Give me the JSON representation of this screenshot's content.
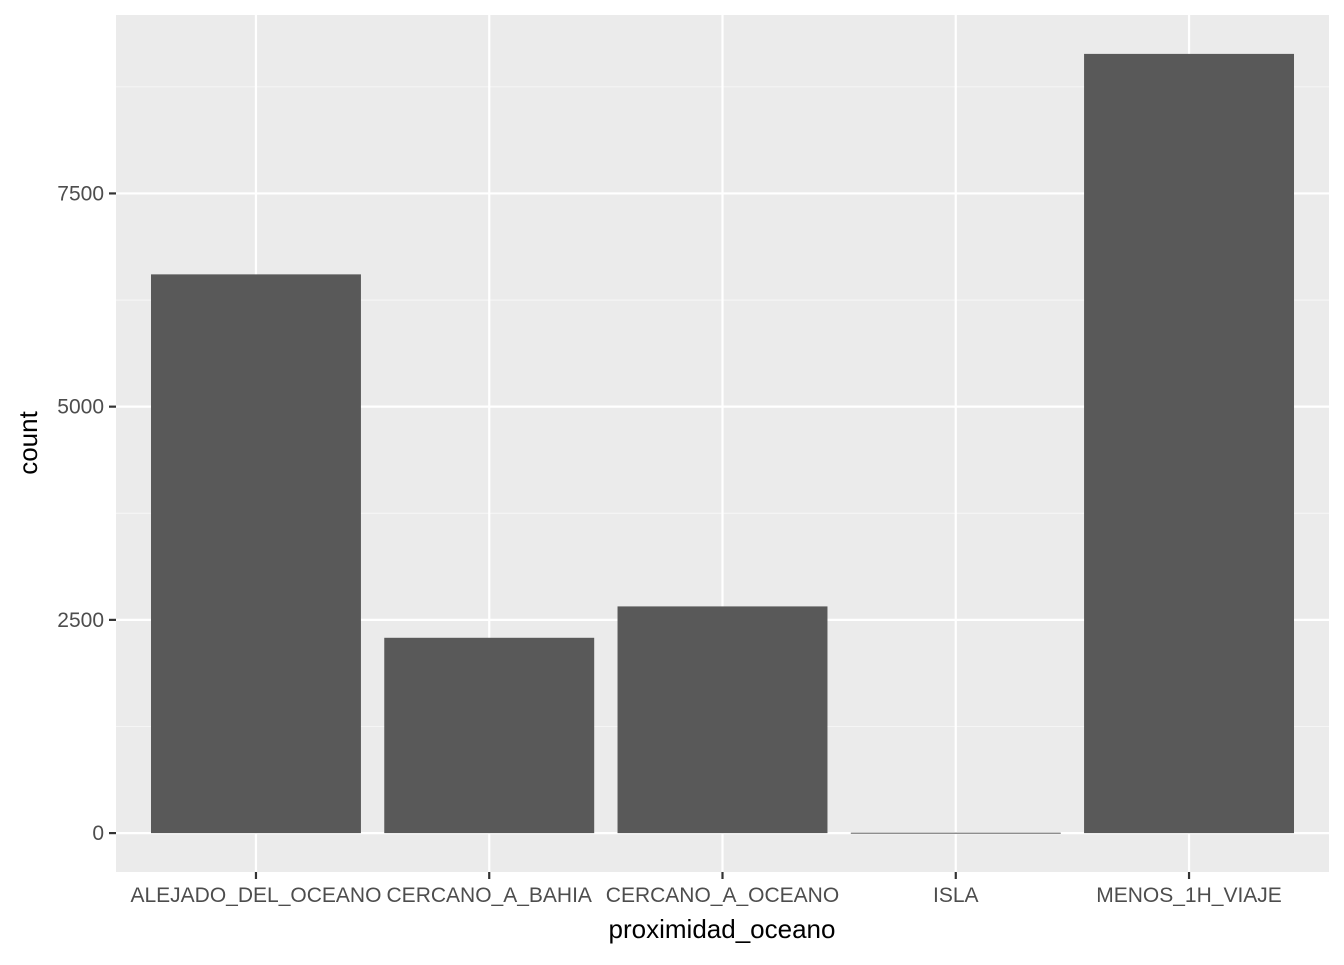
{
  "chart_data": {
    "type": "bar",
    "title": "",
    "xlabel": "proximidad_oceano",
    "ylabel": "count",
    "categories": [
      "ALEJADO_DEL_OCEANO",
      "CERCANO_A_BAHIA",
      "CERCANO_A_OCEANO",
      "ISLA",
      "MENOS_1H_VIAJE"
    ],
    "values": [
      6551,
      2290,
      2658,
      5,
      9136
    ],
    "ylim": [
      -456,
      9592
    ],
    "yticks": [
      0,
      2500,
      5000,
      7500
    ],
    "ytick_labels": [
      "0",
      "2500",
      "5000",
      "7500"
    ],
    "grid": true,
    "legend": "none",
    "colors": {
      "panel_background": "#ebebeb",
      "grid_major": "#ffffff",
      "grid_minor": "#f5f5f5",
      "bar_fill": "#595959",
      "tick_text": "#4d4d4d",
      "axis_ticks": "#333333"
    }
  }
}
